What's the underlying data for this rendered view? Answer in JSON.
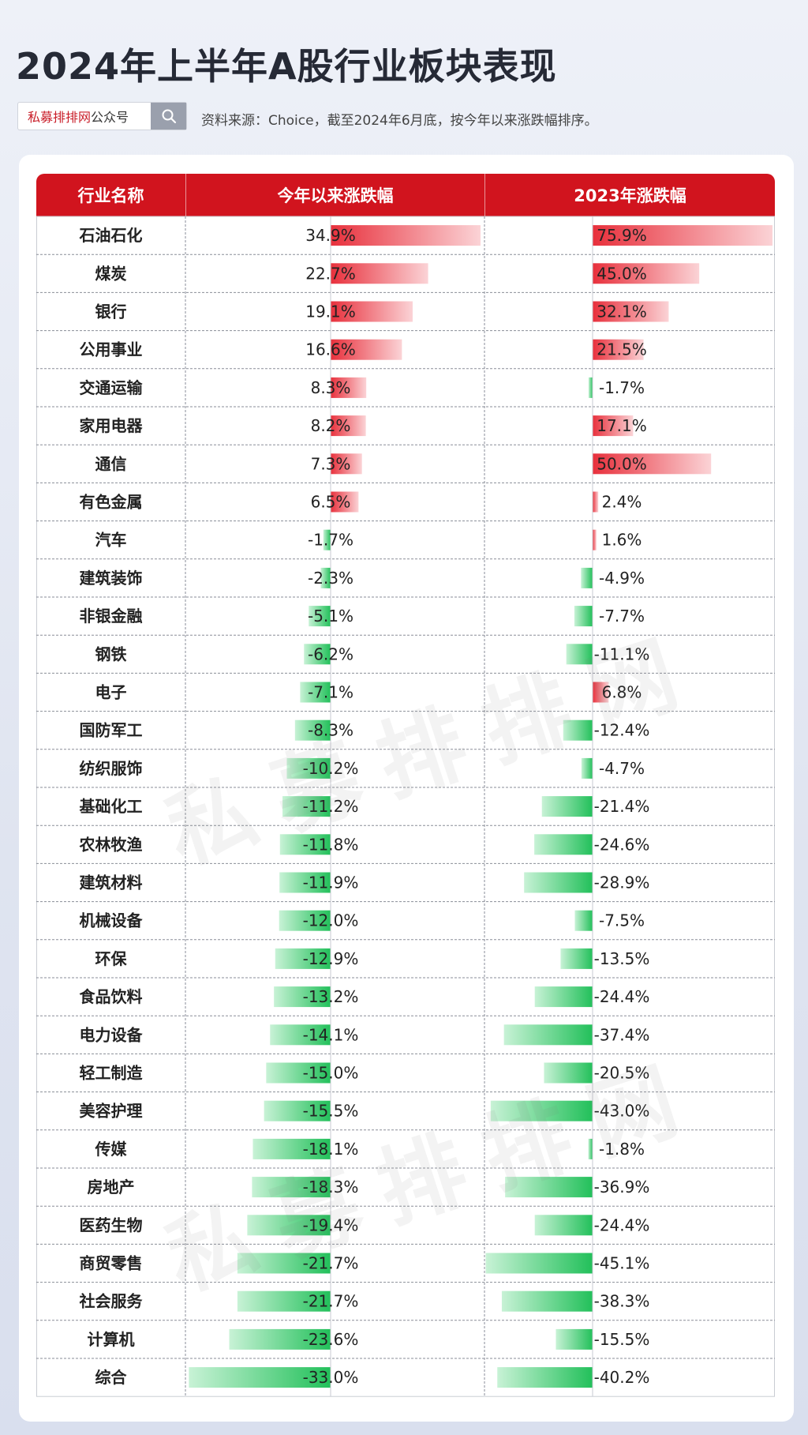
{
  "page": {
    "title": "2024年上半年A股行业板块表现",
    "search": {
      "brand": "私募排排网",
      "suffix": "公众号"
    },
    "source": "资料来源：Choice，截至2024年6月底，按今年以来涨跌幅排序。",
    "watermark": "私募排排网"
  },
  "chart_data": {
    "type": "table",
    "columns": [
      "行业名称",
      "今年以来涨跌幅",
      "2023年涨跌幅"
    ],
    "categories": [
      "石油石化",
      "煤炭",
      "银行",
      "公用事业",
      "交通运输",
      "家用电器",
      "通信",
      "有色金属",
      "汽车",
      "建筑装饰",
      "非银金融",
      "钢铁",
      "电子",
      "国防军工",
      "纺织服饰",
      "基础化工",
      "农林牧渔",
      "建筑材料",
      "机械设备",
      "环保",
      "食品饮料",
      "电力设备",
      "轻工制造",
      "美容护理",
      "传媒",
      "房地产",
      "医药生物",
      "商贸零售",
      "社会服务",
      "计算机",
      "综合"
    ],
    "series": [
      {
        "name": "今年以来涨跌幅",
        "values": [
          34.9,
          22.7,
          19.1,
          16.6,
          8.3,
          8.2,
          7.3,
          6.5,
          -1.7,
          -2.3,
          -5.1,
          -6.2,
          -7.1,
          -8.3,
          -10.2,
          -11.2,
          -11.8,
          -11.9,
          -12.0,
          -12.9,
          -13.2,
          -14.1,
          -15.0,
          -15.5,
          -18.1,
          -18.3,
          -19.4,
          -21.7,
          -21.7,
          -23.6,
          -33.0
        ]
      },
      {
        "name": "2023年涨跌幅",
        "values": [
          75.9,
          45.0,
          32.1,
          21.5,
          -1.7,
          17.1,
          50.0,
          2.4,
          1.6,
          -4.9,
          -7.7,
          -11.1,
          6.8,
          -12.4,
          -4.7,
          -21.4,
          -24.6,
          -28.9,
          -7.5,
          -13.5,
          -24.4,
          -37.4,
          -20.5,
          -43.0,
          -1.8,
          -36.9,
          -24.4,
          -45.1,
          -38.3,
          -15.5,
          -40.2
        ]
      }
    ],
    "colors": {
      "positive": "#e8303c",
      "negative": "#25c25a",
      "header": "#d1141e"
    }
  }
}
